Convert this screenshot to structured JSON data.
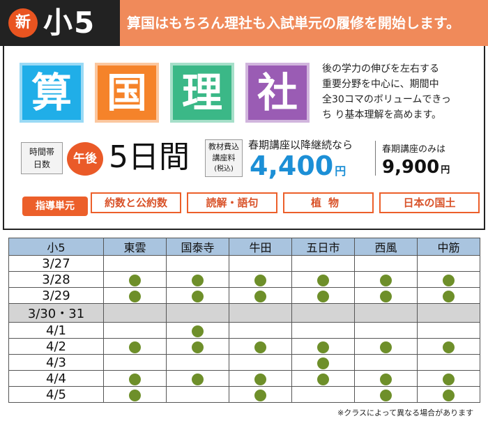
{
  "header": {
    "badge": "新",
    "grade": "小5",
    "headline": "算国はもちろん理社も入試単元の履修を開始します。"
  },
  "subjects": [
    "算",
    "国",
    "理",
    "社"
  ],
  "description": [
    "後の学力の伸びを左右する",
    "重要分野を中心に、期間中",
    "全30コマのボリュームできっ",
    "ち り基本理解を高めます。"
  ],
  "time": {
    "label_line1": "時間帯",
    "label_line2": "日数",
    "period": "午後",
    "days": "5日間"
  },
  "fee": {
    "label_line1": "教材費込",
    "label_line2": "講座料",
    "label_line3": "(税込)",
    "continuation_label": "春期講座以降継続なら",
    "continuation_price": "4,400",
    "spring_only_label": "春期講座のみは",
    "spring_only_price": "9,900",
    "yen": "円"
  },
  "units": {
    "label": "指導単元",
    "items": [
      "約数と公約数",
      "読解・語句",
      "植物",
      "日本の国土"
    ]
  },
  "schedule": {
    "grade_header": "小5",
    "schools": [
      "東雲",
      "国泰寺",
      "牛田",
      "五日市",
      "西風",
      "中筋"
    ],
    "rows": [
      {
        "date": "3/27",
        "holiday": false,
        "marks": [
          0,
          0,
          0,
          0,
          0,
          0
        ]
      },
      {
        "date": "3/28",
        "holiday": false,
        "marks": [
          1,
          1,
          1,
          1,
          1,
          1
        ]
      },
      {
        "date": "3/29",
        "holiday": false,
        "marks": [
          1,
          1,
          1,
          1,
          1,
          1
        ]
      },
      {
        "date": "3/30・31",
        "holiday": true,
        "marks": [
          0,
          0,
          0,
          0,
          0,
          0
        ]
      },
      {
        "date": "4/1",
        "holiday": false,
        "marks": [
          0,
          1,
          0,
          0,
          0,
          0
        ]
      },
      {
        "date": "4/2",
        "holiday": false,
        "marks": [
          1,
          1,
          1,
          1,
          1,
          1
        ]
      },
      {
        "date": "4/3",
        "holiday": false,
        "marks": [
          0,
          0,
          0,
          1,
          0,
          0
        ]
      },
      {
        "date": "4/4",
        "holiday": false,
        "marks": [
          1,
          1,
          1,
          1,
          1,
          1
        ]
      },
      {
        "date": "4/5",
        "holiday": false,
        "marks": [
          1,
          0,
          1,
          0,
          1,
          1
        ]
      }
    ]
  },
  "footnote": "※クラスによって異なる場合があります",
  "colors": {
    "math": "#20aee8",
    "japanese": "#f5832a",
    "science": "#3bb887",
    "social": "#9a5cb4",
    "accent": "#ec5f2a",
    "price_blue": "#1c8fd6",
    "table_header": "#a9c4df",
    "dot": "#6e8f2a"
  }
}
